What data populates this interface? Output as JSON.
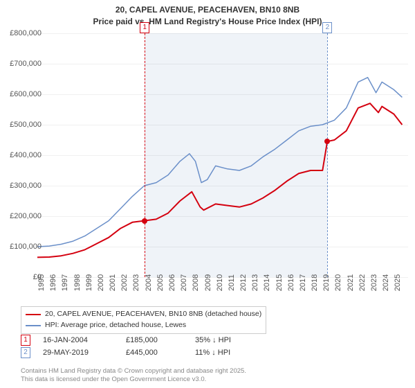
{
  "title_line1": "20, CAPEL AVENUE, PEACEHAVEN, BN10 8NB",
  "title_line2": "Price paid vs. HM Land Registry's House Price Index (HPI)",
  "chart": {
    "type": "line",
    "background_color": "#ffffff",
    "shading_color": "rgba(210,220,235,0.35)",
    "grid_color": "rgba(0,0,0,0.06)",
    "xlim": [
      1995,
      2026.2
    ],
    "ylim": [
      0,
      800000
    ],
    "ytick_step": 100000,
    "y_tick_labels": [
      "£0",
      "£100,000",
      "£200,000",
      "£300,000",
      "£400,000",
      "£500,000",
      "£600,000",
      "£700,000",
      "£800,000"
    ],
    "x_ticks": [
      1995,
      1996,
      1997,
      1998,
      1999,
      2000,
      2001,
      2002,
      2003,
      2004,
      2005,
      2006,
      2007,
      2008,
      2009,
      2010,
      2011,
      2012,
      2013,
      2014,
      2015,
      2016,
      2017,
      2018,
      2019,
      2020,
      2021,
      2022,
      2023,
      2024,
      2025
    ],
    "tick_fontsize": 11,
    "tick_color": "#555555",
    "series": [
      {
        "name": "20, CAPEL AVENUE, PEACEHAVEN, BN10 8NB (detached house)",
        "color": "#d4000f",
        "line_width": 2,
        "data": [
          [
            1995,
            65000
          ],
          [
            1996,
            66000
          ],
          [
            1997,
            70000
          ],
          [
            1998,
            78000
          ],
          [
            1999,
            90000
          ],
          [
            2000,
            110000
          ],
          [
            2001,
            130000
          ],
          [
            2002,
            160000
          ],
          [
            2003,
            180000
          ],
          [
            2004,
            185000
          ],
          [
            2005,
            190000
          ],
          [
            2006,
            210000
          ],
          [
            2007,
            250000
          ],
          [
            2008,
            280000
          ],
          [
            2008.7,
            230000
          ],
          [
            2009,
            220000
          ],
          [
            2010,
            240000
          ],
          [
            2011,
            235000
          ],
          [
            2012,
            230000
          ],
          [
            2013,
            240000
          ],
          [
            2014,
            260000
          ],
          [
            2015,
            285000
          ],
          [
            2016,
            315000
          ],
          [
            2017,
            340000
          ],
          [
            2018,
            350000
          ],
          [
            2019,
            350000
          ],
          [
            2019.4,
            445000
          ],
          [
            2020,
            450000
          ],
          [
            2021,
            480000
          ],
          [
            2022,
            555000
          ],
          [
            2023,
            570000
          ],
          [
            2023.7,
            540000
          ],
          [
            2024,
            560000
          ],
          [
            2025,
            535000
          ],
          [
            2025.7,
            500000
          ]
        ]
      },
      {
        "name": "HPI: Average price, detached house, Lewes",
        "color": "#6a8fc9",
        "line_width": 1.5,
        "data": [
          [
            1995,
            100000
          ],
          [
            1996,
            102000
          ],
          [
            1997,
            108000
          ],
          [
            1998,
            118000
          ],
          [
            1999,
            135000
          ],
          [
            2000,
            160000
          ],
          [
            2001,
            185000
          ],
          [
            2002,
            225000
          ],
          [
            2003,
            265000
          ],
          [
            2004,
            300000
          ],
          [
            2005,
            310000
          ],
          [
            2006,
            335000
          ],
          [
            2007,
            380000
          ],
          [
            2007.8,
            405000
          ],
          [
            2008.3,
            380000
          ],
          [
            2008.8,
            310000
          ],
          [
            2009.3,
            320000
          ],
          [
            2010,
            365000
          ],
          [
            2011,
            355000
          ],
          [
            2012,
            350000
          ],
          [
            2013,
            365000
          ],
          [
            2014,
            395000
          ],
          [
            2015,
            420000
          ],
          [
            2016,
            450000
          ],
          [
            2017,
            480000
          ],
          [
            2018,
            495000
          ],
          [
            2019,
            500000
          ],
          [
            2020,
            515000
          ],
          [
            2021,
            555000
          ],
          [
            2022,
            640000
          ],
          [
            2022.8,
            655000
          ],
          [
            2023.5,
            605000
          ],
          [
            2024,
            640000
          ],
          [
            2025,
            615000
          ],
          [
            2025.7,
            590000
          ]
        ]
      }
    ],
    "events": [
      {
        "label": "1",
        "x": 2004.04,
        "color": "#d4000f",
        "marker_y": 185000
      },
      {
        "label": "2",
        "x": 2019.41,
        "color": "#6a8fc9",
        "marker_y": 445000
      }
    ],
    "shaded_ranges": [
      [
        2004.04,
        2019.41
      ]
    ]
  },
  "legend": {
    "border_color": "#cccccc",
    "fontsize": 10.5
  },
  "events_table": {
    "rows": [
      {
        "badge": "1",
        "badge_color": "#d4000f",
        "date": "16-JAN-2004",
        "price": "£185,000",
        "delta": "35% ↓ HPI"
      },
      {
        "badge": "2",
        "badge_color": "#6a8fc9",
        "date": "29-MAY-2019",
        "price": "£445,000",
        "delta": "11% ↓ HPI"
      }
    ]
  },
  "footer": {
    "line1": "Contains HM Land Registry data © Crown copyright and database right 2025.",
    "line2": "This data is licensed under the Open Government Licence v3.0."
  }
}
